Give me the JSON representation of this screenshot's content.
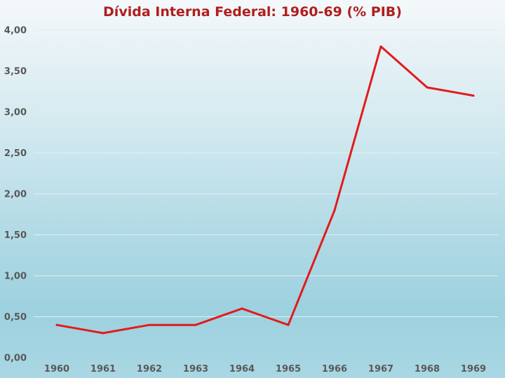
{
  "chart_data": {
    "type": "line",
    "title": "Dívida Interna Federal: 1960-69 (% PIB)",
    "xlabel": "",
    "ylabel": "",
    "categories": [
      "1960",
      "1961",
      "1962",
      "1963",
      "1964",
      "1965",
      "1966",
      "1967",
      "1968",
      "1969"
    ],
    "series": [
      {
        "values": [
          0.4,
          0.3,
          0.4,
          0.4,
          0.6,
          0.4,
          1.8,
          3.8,
          3.3,
          3.2
        ],
        "color": "#e31b1b"
      }
    ],
    "ylim": [
      0,
      4
    ],
    "y_ticks": [
      "0,00",
      "0,50",
      "1,00",
      "1,50",
      "2,00",
      "2,50",
      "3,00",
      "3,50",
      "4,00"
    ],
    "grid": true,
    "legend": "none"
  }
}
